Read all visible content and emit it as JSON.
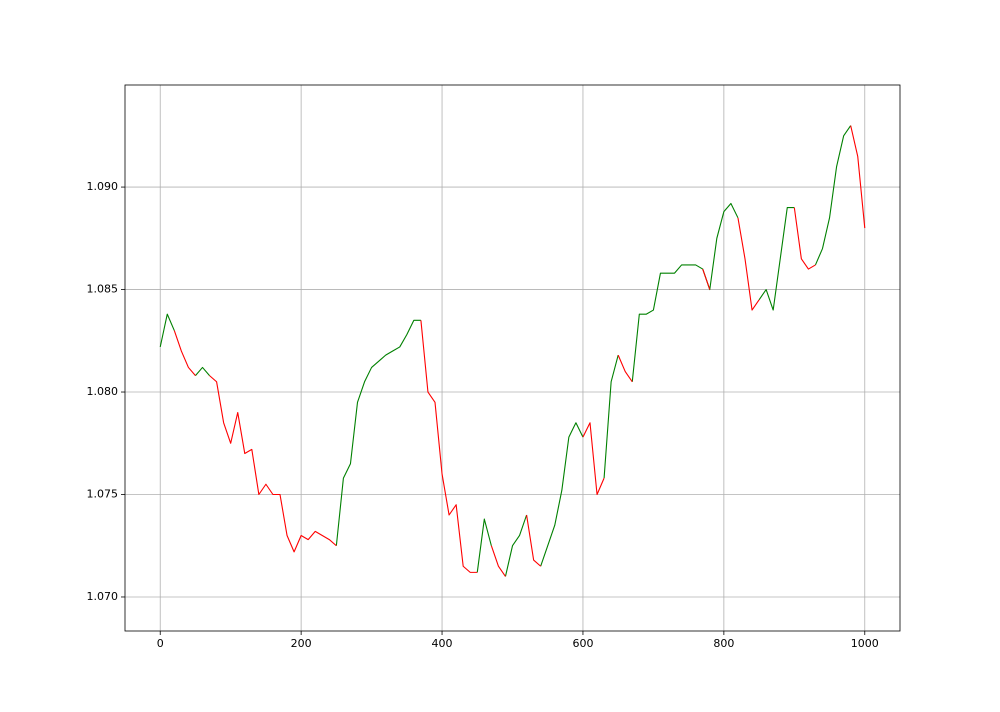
{
  "chart_data": {
    "type": "line",
    "x": [
      0,
      10,
      20,
      30,
      40,
      50,
      60,
      70,
      80,
      90,
      100,
      110,
      120,
      130,
      140,
      150,
      160,
      170,
      180,
      190,
      200,
      210,
      220,
      230,
      240,
      250,
      260,
      270,
      280,
      290,
      300,
      310,
      320,
      330,
      340,
      350,
      360,
      370,
      380,
      390,
      400,
      410,
      420,
      430,
      440,
      450,
      460,
      470,
      480,
      490,
      500,
      510,
      520,
      530,
      540,
      550,
      560,
      570,
      580,
      590,
      600,
      610,
      620,
      630,
      640,
      650,
      660,
      670,
      680,
      690,
      700,
      710,
      720,
      730,
      740,
      750,
      760,
      770,
      780,
      790,
      800,
      810,
      820,
      830,
      840,
      850,
      860,
      870,
      880,
      890,
      900,
      910,
      920,
      930,
      940,
      950,
      960,
      970,
      980,
      990,
      1000
    ],
    "series": [
      {
        "color": "#008000",
        "values": [
          1.0822,
          1.0838,
          1.083,
          null,
          null,
          1.0808,
          1.0812,
          1.0808,
          null,
          null,
          null,
          null,
          null,
          null,
          null,
          null,
          null,
          null,
          null,
          null,
          null,
          null,
          null,
          null,
          null,
          1.0725,
          1.0758,
          1.0765,
          1.0795,
          1.0805,
          1.0812,
          1.0815,
          1.0818,
          1.082,
          1.0822,
          1.0828,
          1.0835,
          1.0835,
          null,
          null,
          null,
          null,
          null,
          null,
          null,
          1.0712,
          1.0738,
          1.0725,
          null,
          1.071,
          1.0725,
          1.073,
          1.074,
          null,
          1.0715,
          1.0725,
          1.0735,
          1.0752,
          1.0778,
          1.0785,
          1.0778,
          null,
          null,
          1.0758,
          1.0805,
          1.0818,
          null,
          1.0805,
          1.0838,
          1.0838,
          1.084,
          1.0858,
          1.0858,
          1.0858,
          1.0862,
          1.0862,
          1.0862,
          1.086,
          1.085,
          1.0875,
          1.0888,
          1.0892,
          1.0885,
          null,
          null,
          1.0845,
          1.085,
          1.084,
          1.0865,
          1.089,
          1.089,
          null,
          null,
          1.0862,
          1.087,
          1.0885,
          1.091,
          1.0925,
          1.093,
          null,
          null
        ]
      },
      {
        "color": "#ff0000",
        "values": [
          null,
          null,
          1.083,
          1.082,
          1.0812,
          1.0808,
          null,
          1.0808,
          1.0805,
          1.0785,
          1.0775,
          1.079,
          1.077,
          1.0772,
          1.075,
          1.0755,
          1.075,
          1.075,
          1.073,
          1.0722,
          1.073,
          1.0728,
          1.0732,
          1.073,
          1.0728,
          1.0725,
          null,
          null,
          null,
          null,
          null,
          null,
          null,
          null,
          null,
          null,
          null,
          1.0835,
          1.08,
          1.0795,
          1.076,
          1.074,
          1.0745,
          1.0715,
          1.0712,
          1.0712,
          null,
          1.0725,
          1.0715,
          1.071,
          null,
          null,
          1.074,
          1.0718,
          1.0715,
          null,
          null,
          null,
          null,
          null,
          1.0778,
          1.0785,
          1.075,
          1.0758,
          null,
          1.0818,
          1.081,
          1.0805,
          null,
          null,
          null,
          null,
          null,
          null,
          null,
          null,
          null,
          1.086,
          1.085,
          null,
          null,
          null,
          1.0885,
          1.0865,
          1.084,
          1.0845,
          null,
          null,
          null,
          null,
          1.089,
          1.0865,
          1.086,
          1.0862,
          null,
          null,
          null,
          null,
          1.093,
          1.0915,
          1.088
        ]
      }
    ],
    "xlim": [
      -50,
      1050
    ],
    "xticks": [
      0,
      200,
      400,
      600,
      800,
      1000
    ],
    "ylim": [
      1.06834,
      1.09498
    ],
    "yticks": [
      {
        "value": 1.07,
        "label": "1.070"
      },
      {
        "value": 1.075,
        "label": "1.075"
      },
      {
        "value": 1.08,
        "label": "1.080"
      },
      {
        "value": 1.085,
        "label": "1.085"
      },
      {
        "value": 1.09,
        "label": "1.090"
      }
    ],
    "grid": true
  }
}
